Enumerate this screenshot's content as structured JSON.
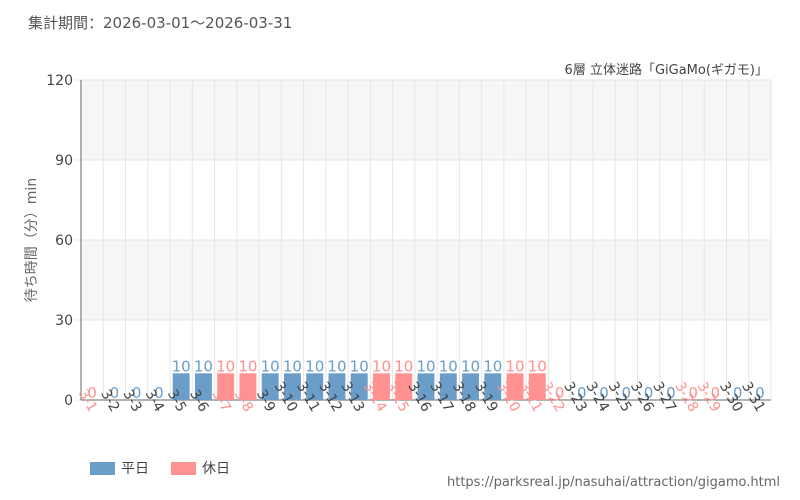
{
  "header": {
    "period_label": "集計期間：2026-03-01～2026-03-31",
    "attraction_label": "6層 立体迷路「GiGaMo(ギガモ)」"
  },
  "footer": {
    "source_url": "https://parksreal.jp/nasuhai/attraction/gigamo.html"
  },
  "chart_data": {
    "type": "bar",
    "title": "",
    "xlabel": "",
    "ylabel": "待ち時間（分）min",
    "ylim": [
      0,
      120
    ],
    "yticks": [
      0,
      30,
      60,
      90,
      120
    ],
    "grid": true,
    "legend_position": "bottom-left",
    "legend": [
      {
        "name": "平日",
        "color": "#6a9dc8"
      },
      {
        "name": "休日",
        "color": "#ff9190"
      }
    ],
    "categories": [
      "3-1",
      "3-2",
      "3-3",
      "3-4",
      "3-5",
      "3-6",
      "3-7",
      "3-8",
      "3-9",
      "3-10",
      "3-11",
      "3-12",
      "3-13",
      "3-14",
      "3-15",
      "3-16",
      "3-17",
      "3-18",
      "3-19",
      "3-20",
      "3-21",
      "3-22",
      "3-23",
      "3-24",
      "3-25",
      "3-26",
      "3-27",
      "3-28",
      "3-29",
      "3-30",
      "3-31"
    ],
    "values": [
      0,
      0,
      0,
      0,
      10,
      10,
      10,
      10,
      10,
      10,
      10,
      10,
      10,
      10,
      10,
      10,
      10,
      10,
      10,
      10,
      10,
      0,
      0,
      0,
      0,
      0,
      0,
      0,
      0,
      0,
      0
    ],
    "day_type": [
      "休日",
      "平日",
      "平日",
      "平日",
      "平日",
      "平日",
      "休日",
      "休日",
      "平日",
      "平日",
      "平日",
      "平日",
      "平日",
      "休日",
      "休日",
      "平日",
      "平日",
      "平日",
      "平日",
      "休日",
      "休日",
      "休日",
      "平日",
      "平日",
      "平日",
      "平日",
      "平日",
      "休日",
      "休日",
      "平日",
      "平日"
    ],
    "colors": {
      "weekday": "#6a9dc8",
      "holiday": "#ff9190",
      "grid": "#e6e6e6",
      "band": "#f6f6f6",
      "axis": "#666666"
    }
  }
}
